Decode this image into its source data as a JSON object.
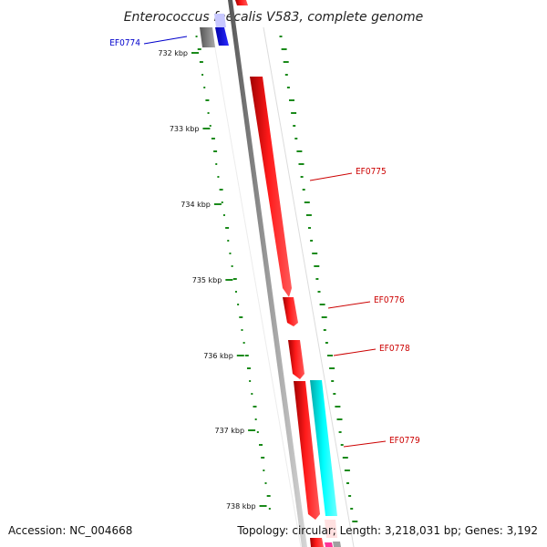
{
  "title": "Enterococcus faecalis V583, complete genome",
  "accession": "Accession: NC_004668",
  "summary": "Topology: circular; Length: 3,218,031 bp; Genes: 3,192",
  "ticks": [
    {
      "label": "732 kbp",
      "kbp": 732
    },
    {
      "label": "733 kbp",
      "kbp": 733
    },
    {
      "label": "734 kbp",
      "kbp": 734
    },
    {
      "label": "735 kbp",
      "kbp": 735
    },
    {
      "label": "736 kbp",
      "kbp": 736
    },
    {
      "label": "737 kbp",
      "kbp": 737
    },
    {
      "label": "738 kbp",
      "kbp": 738
    }
  ],
  "gene_labels": [
    {
      "id": "EF0774",
      "color": "#0000cc"
    },
    {
      "id": "EF0775",
      "color": "#cc0000"
    },
    {
      "id": "EF0776",
      "color": "#cc0000"
    },
    {
      "id": "EF0778",
      "color": "#cc0000"
    },
    {
      "id": "EF0779",
      "color": "#cc0000"
    }
  ],
  "colors": {
    "forward_gene": "#ff0000",
    "cyan_gene": "#00ffff",
    "blue_gene": "#0000ff",
    "gray_gene": "#888888",
    "backbone": "#808080",
    "gc_dots": "#1a8a1a"
  }
}
